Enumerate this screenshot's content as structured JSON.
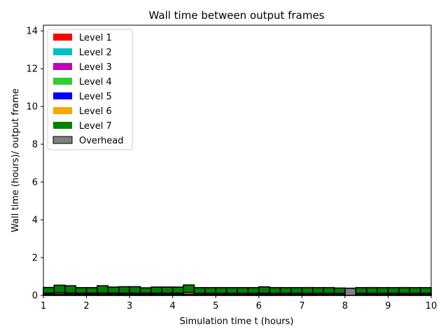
{
  "chart_data": {
    "type": "bar",
    "title": "Wall time between output frames",
    "xlabel": "Simulation time t (hours)",
    "ylabel": "Wall time (hours)/ output frame",
    "xlim": [
      1,
      10
    ],
    "ylim": [
      0,
      14.3
    ],
    "xticks": [
      1,
      2,
      3,
      4,
      5,
      6,
      7,
      8,
      9,
      10
    ],
    "yticks": [
      0,
      2,
      4,
      6,
      8,
      10,
      12,
      14
    ],
    "grid": false,
    "legend_position": "top-left",
    "bar_width": 0.25,
    "x": [
      1.0,
      1.25,
      1.5,
      1.75,
      2.0,
      2.25,
      2.5,
      2.75,
      3.0,
      3.25,
      3.5,
      3.75,
      4.0,
      4.25,
      4.5,
      4.75,
      5.0,
      5.25,
      5.5,
      5.75,
      6.0,
      6.25,
      6.5,
      6.75,
      7.0,
      7.25,
      7.5,
      7.75,
      8.0,
      8.25,
      8.5,
      8.75,
      9.0,
      9.25,
      9.5,
      9.75
    ],
    "series": [
      {
        "name": "Level 1",
        "color": "#ff0000",
        "values": [
          0.02,
          0.02,
          0.02,
          0.02,
          0.02,
          0.02,
          0.02,
          0.02,
          0.02,
          0.02,
          0.02,
          0.02,
          0.02,
          0.02,
          0.02,
          0.02,
          0.02,
          0.02,
          0.02,
          0.02,
          0.02,
          0.02,
          0.02,
          0.02,
          0.02,
          0.02,
          0.02,
          0.02,
          0,
          0.02,
          0.02,
          0.02,
          0.02,
          0.02,
          0.02,
          0.02
        ]
      },
      {
        "name": "Level 2",
        "color": "#00bfbf",
        "values": [
          0.01,
          0.01,
          0.01,
          0.01,
          0.01,
          0.01,
          0.01,
          0.01,
          0.01,
          0.01,
          0.01,
          0.01,
          0.01,
          0.01,
          0.01,
          0.01,
          0.01,
          0.01,
          0.01,
          0.01,
          0.01,
          0.01,
          0.01,
          0.01,
          0.01,
          0.01,
          0.01,
          0.01,
          0,
          0.01,
          0.01,
          0.01,
          0.01,
          0.01,
          0.01,
          0.01
        ]
      },
      {
        "name": "Level 3",
        "color": "#bf00bf",
        "values": [
          0.01,
          0.01,
          0.01,
          0.01,
          0.01,
          0.01,
          0.01,
          0.01,
          0.01,
          0.01,
          0.01,
          0.01,
          0.01,
          0.01,
          0.01,
          0.01,
          0.01,
          0.01,
          0.01,
          0.01,
          0.01,
          0.01,
          0.01,
          0.01,
          0.01,
          0.01,
          0.01,
          0.01,
          0,
          0.01,
          0.01,
          0.01,
          0.01,
          0.01,
          0.01,
          0.01
        ]
      },
      {
        "name": "Level 4",
        "color": "#32cd32",
        "values": [
          0.01,
          0.01,
          0.01,
          0.01,
          0.01,
          0.01,
          0.01,
          0.01,
          0.01,
          0.01,
          0.01,
          0.01,
          0.01,
          0.01,
          0.01,
          0.01,
          0.01,
          0.01,
          0.01,
          0.01,
          0.01,
          0.01,
          0.01,
          0.01,
          0.01,
          0.01,
          0.01,
          0.01,
          0,
          0.01,
          0.01,
          0.01,
          0.01,
          0.01,
          0.01,
          0.01
        ]
      },
      {
        "name": "Level 5",
        "color": "#0000ff",
        "values": [
          0.01,
          0.01,
          0.01,
          0.01,
          0.01,
          0.01,
          0.01,
          0.01,
          0.01,
          0.01,
          0.01,
          0.01,
          0.01,
          0.01,
          0.01,
          0.01,
          0.01,
          0.01,
          0.01,
          0.01,
          0.01,
          0.01,
          0.01,
          0.01,
          0.01,
          0.01,
          0.01,
          0.01,
          0,
          0.01,
          0.01,
          0.01,
          0.01,
          0.01,
          0.01,
          0.01
        ]
      },
      {
        "name": "Level 6",
        "color": "#ffa500",
        "values": [
          0.06,
          0.08,
          0.07,
          0.06,
          0.06,
          0.07,
          0.06,
          0.06,
          0.06,
          0.06,
          0.06,
          0.06,
          0.06,
          0.1,
          0.05,
          0.05,
          0.05,
          0.05,
          0.05,
          0.05,
          0.06,
          0.05,
          0.05,
          0.05,
          0.05,
          0.05,
          0.05,
          0.05,
          0,
          0.05,
          0.05,
          0.05,
          0.05,
          0.05,
          0.05,
          0.05
        ]
      },
      {
        "name": "Level 7",
        "color": "#008000",
        "values": [
          0.3,
          0.4,
          0.38,
          0.29,
          0.29,
          0.38,
          0.32,
          0.34,
          0.34,
          0.28,
          0.32,
          0.32,
          0.32,
          0.39,
          0.3,
          0.3,
          0.3,
          0.3,
          0.3,
          0.3,
          0.33,
          0.3,
          0.3,
          0.3,
          0.3,
          0.3,
          0.3,
          0.28,
          0,
          0.3,
          0.3,
          0.3,
          0.3,
          0.3,
          0.3,
          0.3
        ]
      },
      {
        "name": "Overhead",
        "color": "#808080",
        "values": [
          0,
          0,
          0,
          0,
          0,
          0,
          0,
          0,
          0,
          0,
          0,
          0,
          0,
          0,
          0,
          0,
          0,
          0,
          0,
          0,
          0,
          0,
          0,
          0,
          0,
          0,
          0,
          0,
          0.38,
          0,
          0,
          0,
          0,
          0,
          0,
          0
        ]
      }
    ]
  }
}
